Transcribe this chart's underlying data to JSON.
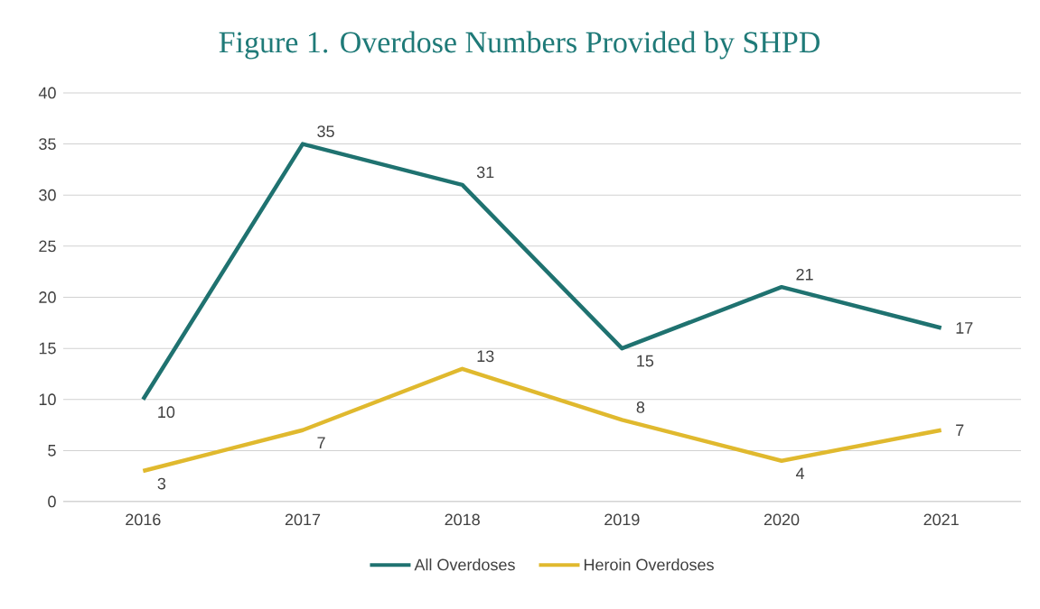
{
  "chart_data": {
    "type": "line",
    "title": "Figure 1. Overdose Numbers Provided by SHPD",
    "categories": [
      "2016",
      "2017",
      "2018",
      "2019",
      "2020",
      "2021"
    ],
    "series": [
      {
        "name": "All Overdoses",
        "color": "#1f7270",
        "values": [
          10,
          35,
          31,
          15,
          21,
          17
        ]
      },
      {
        "name": "Heroin Overdoses",
        "color": "#e0b92e",
        "values": [
          3,
          7,
          13,
          8,
          4,
          7
        ]
      }
    ],
    "ylim": [
      0,
      40
    ],
    "yticks": [
      0,
      5,
      10,
      15,
      20,
      25,
      30,
      35,
      40
    ],
    "grid": "y",
    "legend": "bottom",
    "data_labels": true,
    "marker": "none",
    "line_style": "solid"
  }
}
